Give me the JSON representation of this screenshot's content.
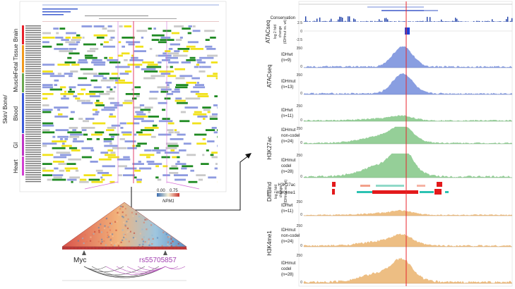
{
  "left_panel": {
    "tissue_groups": [
      {
        "label": "Brain",
        "color": "#e8202a"
      },
      {
        "label": "Fetal Tissue",
        "color": "#f29a1d"
      },
      {
        "label": "Muscle",
        "color": "#6aa84f"
      },
      {
        "label": "Blood",
        "color": "#3b5bdb"
      },
      {
        "label": "GI",
        "color": "#c036c7"
      },
      {
        "label": "Heart",
        "color": "#d33fd3"
      }
    ],
    "side_title": "Skin/ Bone/"
  },
  "hic": {
    "scale_min": "0.00",
    "scale_max": "0.75",
    "gene_label": "NPM1",
    "myc_label": "Myc",
    "snp_label": "rs55705857"
  },
  "right_panel": {
    "conservation_label": "Conservation",
    "atac_change": {
      "title": "ATACseq",
      "sub1": "log 2 fold",
      "sub2": "change",
      "sub3": "(IDHmut vs. wt)",
      "ymax": "2.5",
      "ymid": "0",
      "ymin": "-2.5"
    },
    "atac_group_label": "ATACseq",
    "tracks": [
      {
        "id": "atac-idhwt",
        "label1": "IDHwt",
        "label2": "(n=9)",
        "label3": "",
        "ymax": "350",
        "ymin": "0",
        "color": "#2a4fc9"
      },
      {
        "id": "atac-idhmut",
        "label1": "IDHmut",
        "label2": "(n=13)",
        "label3": "",
        "ymax": "350",
        "ymin": "0",
        "color": "#2a4fc9"
      },
      {
        "id": "k27-idhwt",
        "label1": "IDHwt",
        "label2": "(n=11)",
        "label3": "",
        "ymax": "250",
        "ymin": "0",
        "color": "#3fa845"
      },
      {
        "id": "k27-noncodel",
        "label1": "IDHmut",
        "label2": "non-codel",
        "label3": "(n=24)",
        "ymax": "250",
        "ymin": "0",
        "color": "#3fa845"
      },
      {
        "id": "k27-codel",
        "label1": "IDHmut",
        "label2": "codel",
        "label3": "(n=28)",
        "ymax": "250",
        "ymin": "0",
        "color": "#3fa845"
      },
      {
        "id": "k4-idhwt",
        "label1": "IDHwt",
        "label2": "(n=11)",
        "label3": "",
        "ymax": "250",
        "ymin": "0",
        "color": "#e08a1e"
      },
      {
        "id": "k4-noncodel",
        "label1": "IDHmut",
        "label2": "non-codel",
        "label3": "(n=24)",
        "ymax": "250",
        "ymin": "0",
        "color": "#e08a1e"
      },
      {
        "id": "k4-codel",
        "label1": "IDHmut",
        "label2": "codel",
        "label3": "(n=28)",
        "ymax": "250",
        "ymin": "0",
        "color": "#e08a1e"
      }
    ],
    "h3k27ac_group_label": "H3K27ac",
    "diffbind": {
      "title": "DiffBind",
      "sub1": "log 2 fold",
      "sub2": "change",
      "sub3": "(IDHmut vs. wt)",
      "row1": "H3K27ac",
      "row2": "H3K4me1"
    },
    "h3k4me1_group_label": "H3K4me1"
  }
}
